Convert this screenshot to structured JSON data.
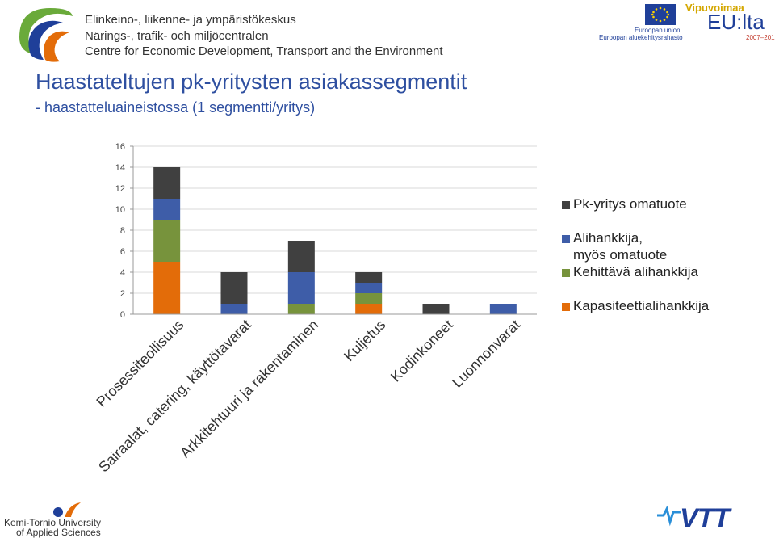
{
  "header": {
    "org_lines": [
      "Elinkeino-, liikenne- ja ympäristökeskus",
      "Närings-, trafik- och miljöcentralen",
      "Centre for Economic Development, Transport and the Environment"
    ],
    "eu_lines": [
      "Euroopan unioni",
      "Euroopan aluekehitysrahasto"
    ],
    "vipuvoimaa_top": "Vipuvoimaa",
    "vipuvoimaa_main": "EU:lta",
    "vipuvoimaa_years": "2007–2013"
  },
  "slide": {
    "title": "Haastateltujen pk-yritysten asiakassegmentit",
    "subtitle": "- haastatteluaineistossa (1 segmentti/yritys)"
  },
  "footer": {
    "kemi_line1": "Kemi-Tornio University",
    "kemi_line2": "of Applied Sciences",
    "vtt": "VTT"
  },
  "icons": [
    "ely-logo-icon",
    "eu-flag-icon",
    "kemi-tornio-logo-icon",
    "vtt-logo-icon"
  ],
  "chart_data": {
    "type": "bar",
    "stacked": true,
    "title": "",
    "xlabel": "",
    "ylabel": "",
    "ylim": [
      0,
      16
    ],
    "yticks": [
      0,
      2,
      4,
      6,
      8,
      10,
      12,
      14,
      16
    ],
    "grid": true,
    "legend_position": "right",
    "categories": [
      "Prosessiteollisuus",
      "Sairaalat, catering, käyttötavarat",
      "Arkkitehtuuri ja rakentaminen",
      "Kuljetus",
      "Kodinkoneet",
      "Luonnonvarat"
    ],
    "series": [
      {
        "name": "Kapasiteettialihankkija",
        "color": "#e36c09",
        "values": [
          5,
          0,
          0,
          1,
          0,
          0
        ]
      },
      {
        "name": "Kehittävä alihankkija",
        "color": "#77933c",
        "values": [
          4,
          0,
          1,
          1,
          0,
          0
        ]
      },
      {
        "name": "Alihankkija, myös omatuote",
        "color": "#3e5da8",
        "values": [
          2,
          1,
          3,
          1,
          0,
          1
        ]
      },
      {
        "name": "Pk-yritys omatuote",
        "color": "#404040",
        "values": [
          3,
          3,
          3,
          1,
          1,
          0
        ]
      }
    ],
    "legend_order": [
      "Pk-yritys omatuote",
      "Alihankkija, myös omatuote",
      "Kehittävä alihankkija",
      "Kapasiteettialihankkija"
    ],
    "axis_color": "#999999",
    "grid_color": "#d9d9d9"
  }
}
